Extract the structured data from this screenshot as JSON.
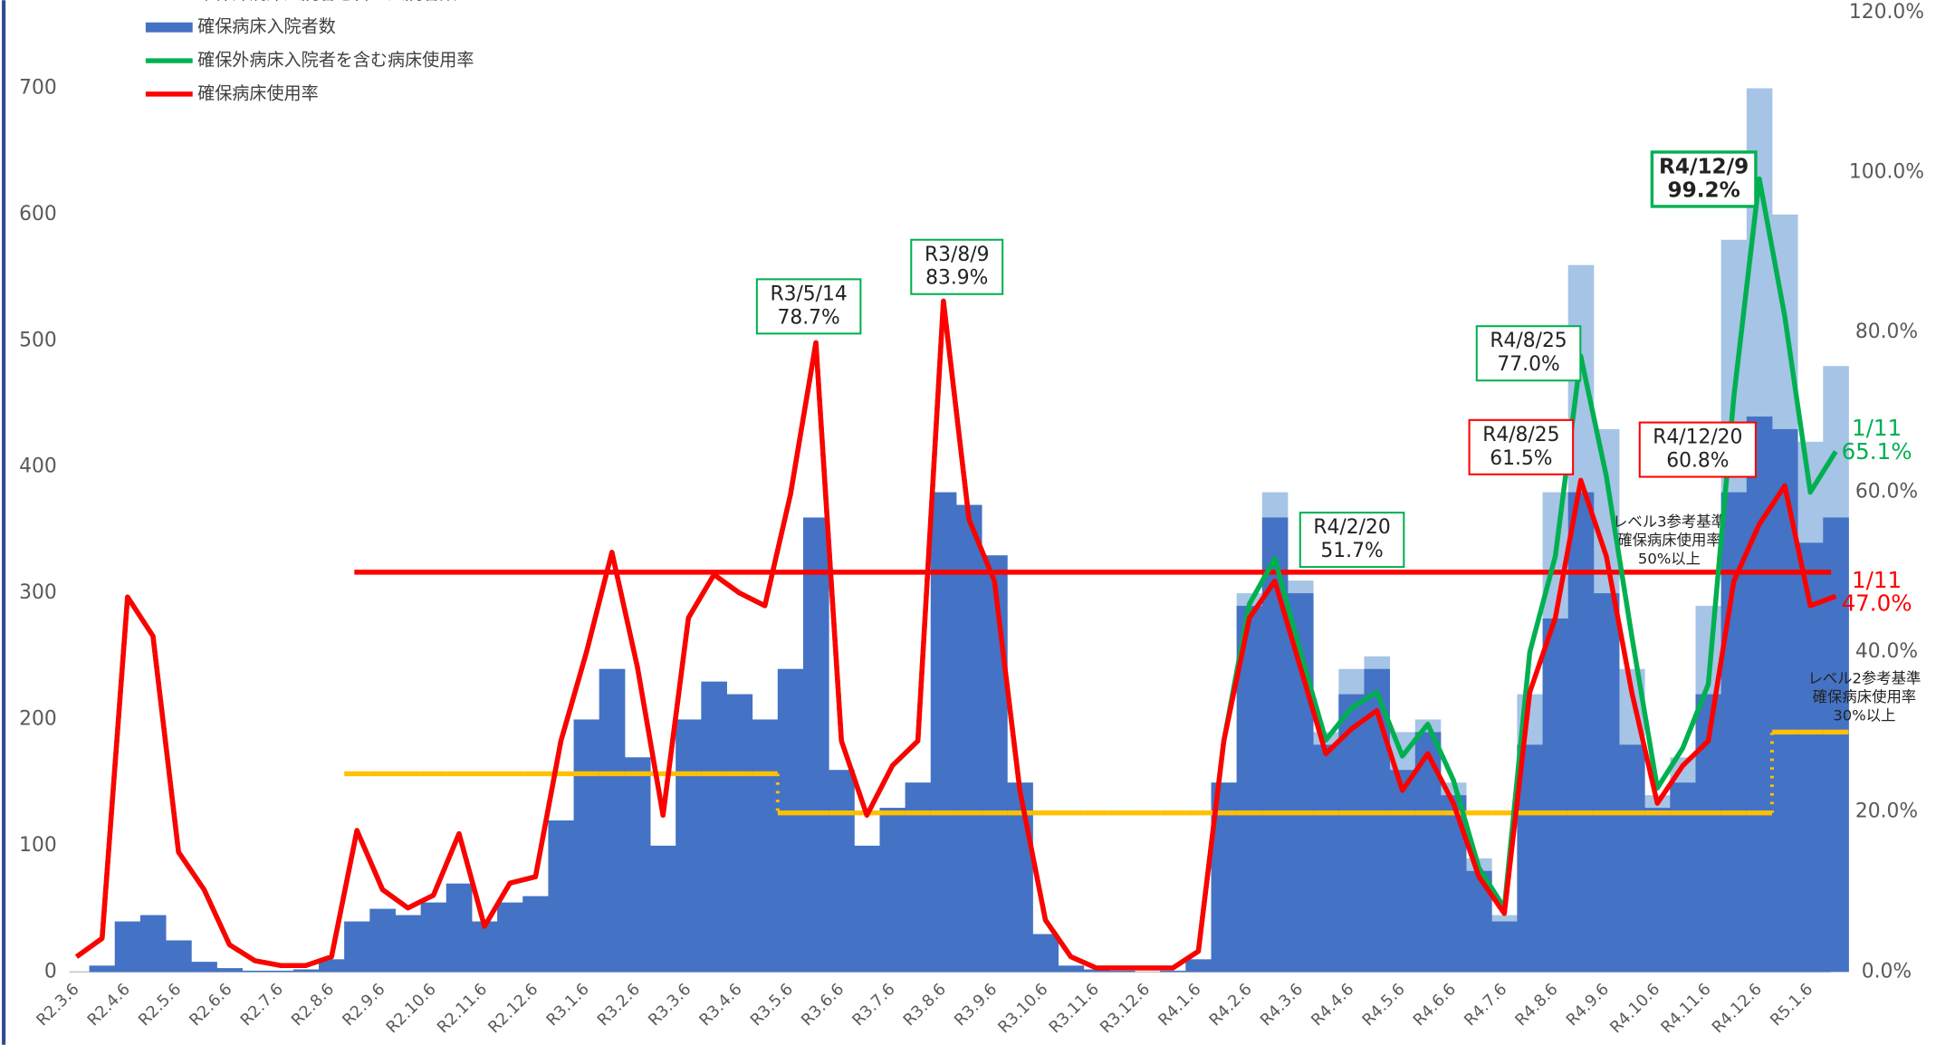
{
  "chart_data": {
    "type": "combo",
    "categories": [
      "R2.3.6",
      null,
      "R2.4.6",
      null,
      "R2.5.6",
      null,
      "R2.6.6",
      null,
      "R2.7.6",
      null,
      "R2.8.6",
      null,
      "R2.9.6",
      null,
      "R2.10.6",
      null,
      "R2.11.6",
      null,
      "R2.12.6",
      null,
      "R3.1.6",
      null,
      "R3.2.6",
      null,
      "R3.3.6",
      null,
      "R3.4.6",
      null,
      "R3.5.6",
      null,
      "R3.6.6",
      null,
      "R3.7.6",
      null,
      "R3.8.6",
      null,
      "R3.9.6",
      null,
      "R3.10.6",
      null,
      "R3.11.6",
      null,
      "R3.12.6",
      null,
      "R4.1.6",
      null,
      "R4.2.6",
      null,
      "R4.3.6",
      null,
      "R4.4.6",
      null,
      "R4.5.6",
      null,
      "R4.6.6",
      null,
      "R4.7.6",
      null,
      "R4.8.6",
      null,
      "R4.9.6",
      null,
      "R4.10.6",
      null,
      "R4.11.6",
      null,
      "R4.12.6",
      null,
      "R5.1.6",
      null
    ],
    "series": [
      {
        "name": "確保外病床入院者を含む入院者数",
        "kind": "bar",
        "axis": "y",
        "color": "#a6c4e6",
        "values": [
          0,
          5,
          40,
          45,
          25,
          8,
          3,
          1,
          1,
          2,
          10,
          40,
          50,
          45,
          55,
          70,
          40,
          55,
          60,
          120,
          200,
          240,
          170,
          100,
          200,
          230,
          220,
          200,
          240,
          360,
          160,
          100,
          130,
          150,
          380,
          370,
          330,
          150,
          30,
          5,
          2,
          1,
          0,
          1,
          10,
          150,
          300,
          380,
          310,
          190,
          240,
          250,
          190,
          200,
          150,
          90,
          45,
          220,
          380,
          560,
          430,
          240,
          140,
          170,
          290,
          580,
          700,
          600,
          420,
          480
        ]
      },
      {
        "name": "確保病床入院者数",
        "kind": "bar",
        "axis": "y",
        "color": "#4472c4",
        "values": [
          0,
          5,
          40,
          45,
          25,
          8,
          3,
          1,
          1,
          2,
          10,
          40,
          50,
          45,
          55,
          70,
          40,
          55,
          60,
          120,
          200,
          240,
          170,
          100,
          200,
          230,
          220,
          200,
          240,
          360,
          160,
          100,
          130,
          150,
          380,
          370,
          330,
          150,
          30,
          5,
          2,
          1,
          0,
          1,
          10,
          150,
          290,
          360,
          300,
          180,
          220,
          240,
          160,
          190,
          140,
          80,
          40,
          180,
          280,
          380,
          300,
          180,
          130,
          150,
          220,
          380,
          440,
          430,
          340,
          360
        ]
      },
      {
        "name": "確保外病床入院者を含む病床使用率",
        "kind": "line",
        "axis": "y2",
        "color": "#00b050",
        "values": [
          1.9,
          4.2,
          46.9,
          42,
          15,
          10.3,
          3.4,
          1.4,
          0.8,
          0.8,
          1.9,
          17.7,
          10.3,
          8,
          9.6,
          17.3,
          5.7,
          11.1,
          11.9,
          28.9,
          40,
          52.5,
          38.1,
          19.6,
          44.3,
          49.7,
          47.4,
          45.8,
          59.7,
          78.7,
          28.9,
          19.6,
          25.8,
          28.9,
          83.9,
          56.6,
          48.9,
          22.7,
          6.5,
          1.9,
          0.5,
          0.5,
          0.5,
          0.5,
          2.6,
          28.9,
          46,
          51.7,
          40,
          29,
          33,
          35,
          27,
          31,
          24,
          13,
          8,
          40,
          52,
          77.0,
          62,
          42,
          23,
          28,
          36,
          72,
          99.2,
          82,
          60,
          65.1
        ]
      },
      {
        "name": "確保病床使用率",
        "kind": "line",
        "axis": "y2",
        "color": "#ff0000",
        "values": [
          1.9,
          4.2,
          46.9,
          42,
          15,
          10.3,
          3.4,
          1.4,
          0.8,
          0.8,
          1.9,
          17.7,
          10.3,
          8,
          9.6,
          17.3,
          5.7,
          11.1,
          11.9,
          28.9,
          40,
          52.5,
          38.1,
          19.6,
          44.3,
          49.7,
          47.4,
          45.8,
          59.7,
          78.7,
          28.9,
          19.6,
          25.8,
          28.9,
          83.9,
          56.6,
          48.9,
          22.7,
          6.5,
          1.9,
          0.5,
          0.5,
          0.5,
          0.5,
          2.6,
          28.9,
          44.3,
          48.9,
          38.1,
          27.3,
          30.4,
          32.7,
          22.7,
          27.3,
          21.1,
          11.9,
          7.3,
          35,
          44.3,
          61.5,
          52,
          35,
          21.1,
          25.8,
          28.9,
          48.9,
          56,
          60.8,
          45.8,
          47.0
        ]
      },
      {
        "kind": "step",
        "axis": "y",
        "color": "#ffc000",
        "values": [
          null,
          null,
          null,
          null,
          null,
          null,
          null,
          null,
          null,
          null,
          null,
          157,
          157,
          157,
          157,
          157,
          157,
          157,
          157,
          157,
          157,
          157,
          157,
          157,
          157,
          157,
          157,
          157,
          126,
          126,
          126,
          126,
          126,
          126,
          126,
          126,
          126,
          126,
          126,
          126,
          126,
          126,
          126,
          126,
          126,
          126,
          126,
          126,
          126,
          126,
          126,
          126,
          126,
          126,
          126,
          126,
          126,
          126,
          126,
          126,
          126,
          126,
          126,
          126,
          126,
          126,
          126,
          190,
          190,
          190
        ]
      }
    ],
    "ylim": [
      0,
      760
    ],
    "yticks": [
      0,
      100,
      200,
      300,
      400,
      500,
      600,
      700
    ],
    "y2lim": [
      0,
      120
    ],
    "y2ticks": [
      {
        "value": 0,
        "label": "0.0%"
      },
      {
        "value": 20,
        "label": "20.0%"
      },
      {
        "value": 40,
        "label": "40.0%"
      },
      {
        "value": 60,
        "label": "60.0%"
      },
      {
        "value": 80,
        "label": "80.0%"
      },
      {
        "value": 100,
        "label": "100.0%"
      },
      {
        "value": 120,
        "label": "120.0%"
      }
    ],
    "reference_lines": [
      {
        "value": 50,
        "axis": "y2",
        "color": "#ff0000",
        "label": [
          "レベル3参考基準",
          "確保病床使用率",
          "50%以上"
        ]
      }
    ],
    "level2_label": [
      "レベル2参考基準",
      "確保病床使用率",
      "30%以上"
    ],
    "annotations": [
      {
        "text": [
          "R3/5/14",
          "78.7%"
        ],
        "color": "#00b050"
      },
      {
        "text": [
          "R3/8/9",
          "83.9%"
        ],
        "color": "#00b050"
      },
      {
        "text": [
          "R4/2/20",
          "51.7%"
        ],
        "color": "#00b050"
      },
      {
        "text": [
          "R4/8/25",
          "77.0%"
        ],
        "color": "#00b050"
      },
      {
        "text": [
          "R4/8/25",
          "61.5%"
        ],
        "color": "#ff0000"
      },
      {
        "text": [
          "R4/12/9",
          "99.2%"
        ],
        "color": "#00b050"
      },
      {
        "text": [
          "R4/12/20",
          "60.8%"
        ],
        "color": "#ff0000"
      },
      {
        "text": [
          "1/11",
          "65.1%"
        ],
        "color": "#00b050"
      },
      {
        "text": [
          "1/11",
          "47.0%"
        ],
        "color": "#ff0000"
      }
    ],
    "legend": "top-left"
  }
}
